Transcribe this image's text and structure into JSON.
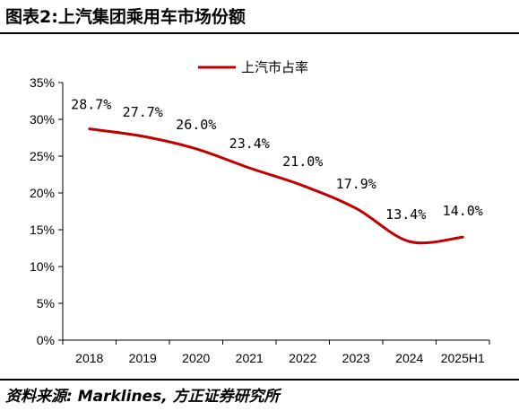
{
  "title": "图表2:上汽集团乘用车市场份额",
  "source": "资料来源: Marklines, 方正证券研究所",
  "chart_data": {
    "type": "line",
    "categories": [
      "2018",
      "2019",
      "2020",
      "2021",
      "2022",
      "2023",
      "2024",
      "2025H1"
    ],
    "series": [
      {
        "name": "上汽市占率",
        "color": "#c00000",
        "values": [
          28.7,
          27.7,
          26.0,
          23.4,
          21.0,
          17.9,
          13.4,
          14.0
        ],
        "labels": [
          "28.7%",
          "27.7%",
          "26.0%",
          "23.4%",
          "21.0%",
          "17.9%",
          "13.4%",
          "14.0%"
        ]
      }
    ],
    "yticks": [
      "0%",
      "5%",
      "10%",
      "15%",
      "20%",
      "25%",
      "30%",
      "35%"
    ],
    "ylim": [
      0,
      35
    ],
    "yunit": "%",
    "legend": "top-center",
    "grid": false
  }
}
